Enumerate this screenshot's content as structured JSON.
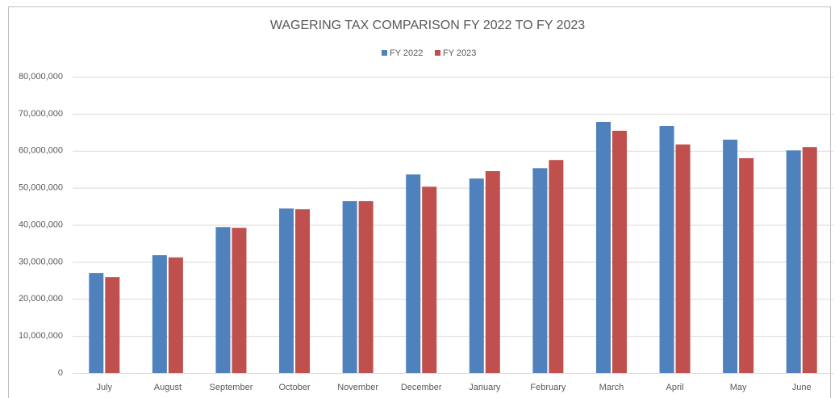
{
  "chart_data": {
    "type": "bar",
    "title": "WAGERING TAX COMPARISON FY 2022 TO FY 2023",
    "categories": [
      "July",
      "August",
      "September",
      "October",
      "November",
      "December",
      "January",
      "February",
      "March",
      "April",
      "May",
      "June"
    ],
    "series": [
      {
        "name": "FY 2022",
        "color": "#4f81bd",
        "values": [
          27000000,
          31800000,
          39400000,
          44400000,
          46400000,
          53600000,
          52500000,
          55300000,
          67800000,
          66700000,
          63000000,
          60100000
        ]
      },
      {
        "name": "FY 2023",
        "color": "#c0504d",
        "values": [
          25900000,
          31200000,
          39200000,
          44200000,
          46400000,
          50300000,
          54500000,
          57500000,
          65400000,
          61700000,
          58000000,
          61000000
        ]
      }
    ],
    "ylim": [
      0,
      80000000
    ],
    "yticks": [
      0,
      {
        "value": 10000000,
        "label": "10,000,000"
      },
      {
        "value": 20000000,
        "label": "20,000,000"
      },
      {
        "value": 30000000,
        "label": "30,000,000"
      },
      {
        "value": 40000000,
        "label": "40,000,000"
      },
      {
        "value": 50000000,
        "label": "50,000,000"
      },
      {
        "value": 60000000,
        "label": "60,000,000"
      },
      {
        "value": 70000000,
        "label": "70,000,000"
      },
      {
        "value": 80000000,
        "label": "80,000,000"
      }
    ],
    "grid": true,
    "legend": "top"
  }
}
